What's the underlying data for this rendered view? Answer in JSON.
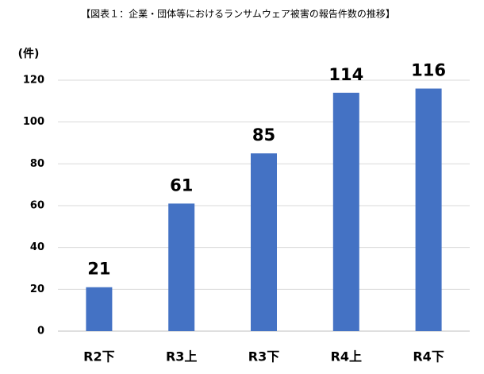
{
  "chart_data": {
    "type": "bar",
    "title": "【図表１：企業・団体等におけるランサムウェア被害の報告件数の推移】",
    "y_label": "(件)",
    "categories": [
      "R2下",
      "R3上",
      "R3下",
      "R4上",
      "R4下"
    ],
    "values": [
      21,
      61,
      85,
      114,
      116
    ],
    "color": "#4472c4",
    "ylim": [
      0,
      120
    ],
    "yticks": [
      0,
      20,
      40,
      60,
      80,
      100,
      120
    ],
    "grid": true
  }
}
